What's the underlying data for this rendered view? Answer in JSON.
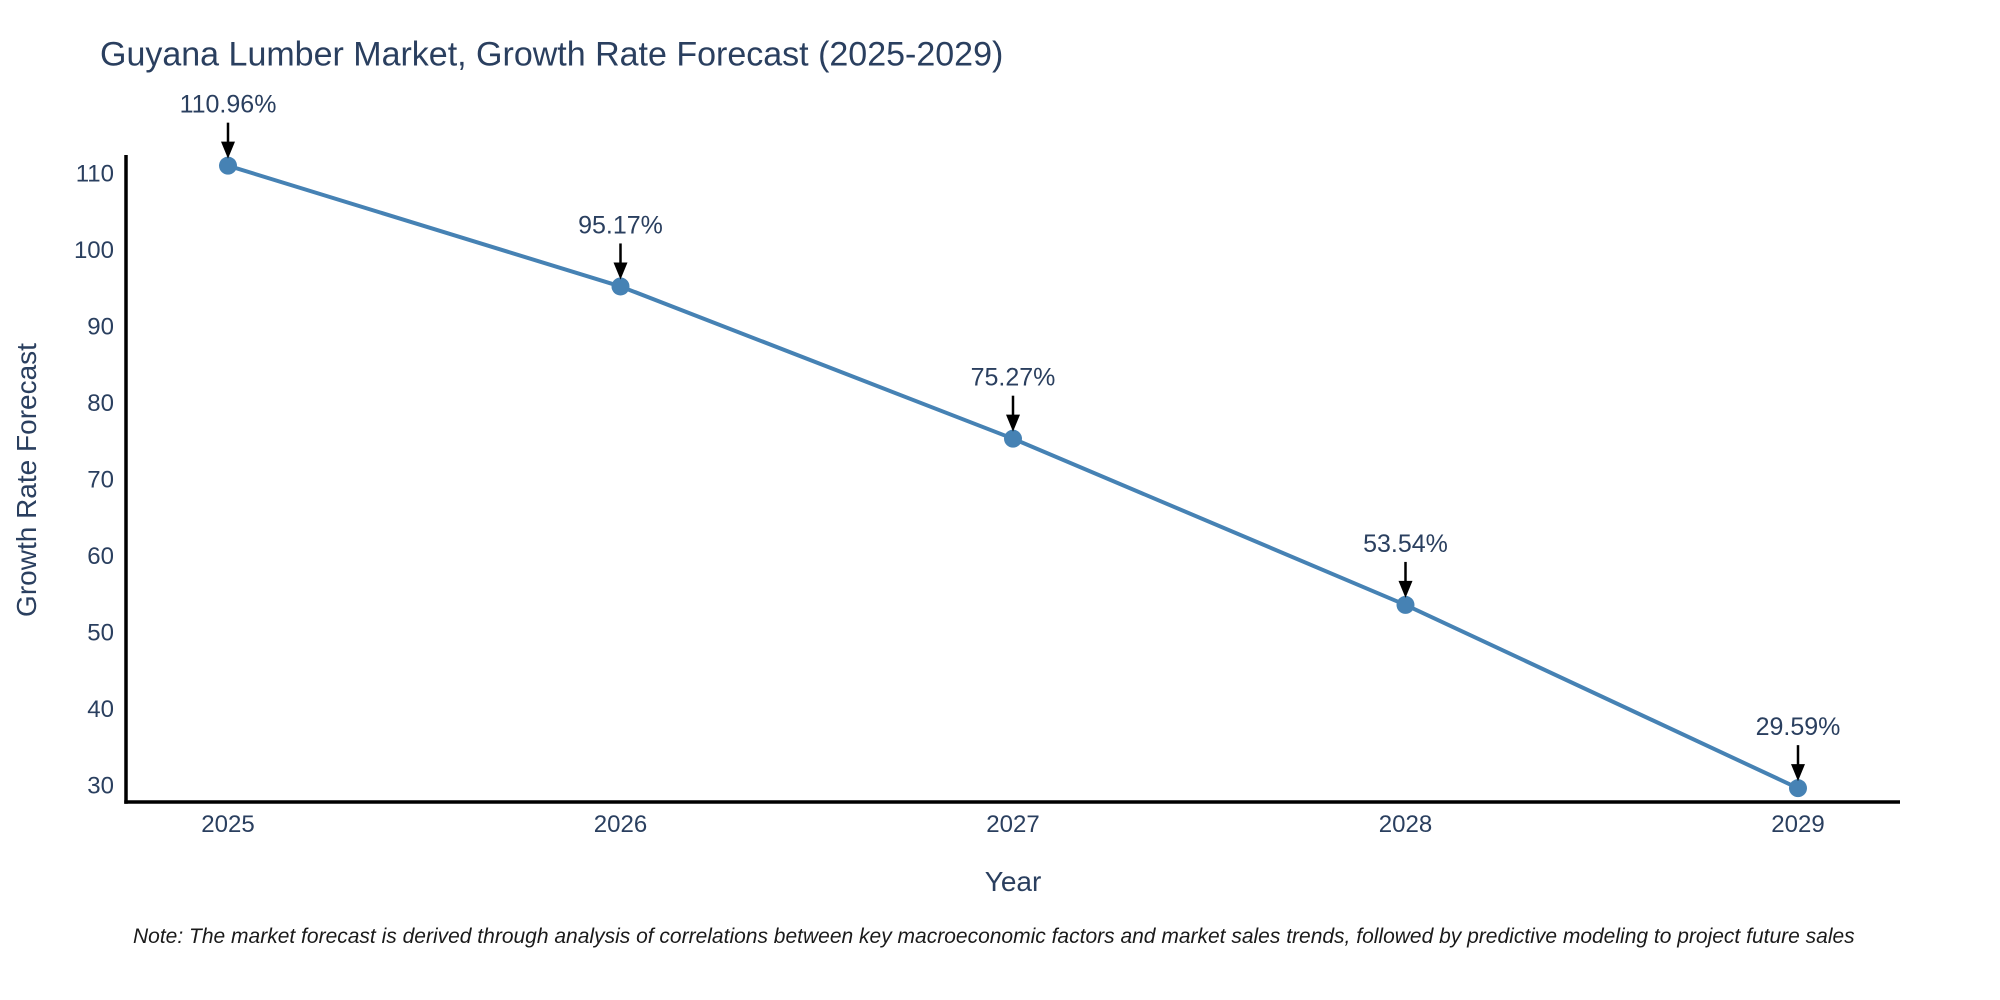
{
  "chart_data": {
    "type": "line",
    "title": "Guyana Lumber Market, Growth Rate Forecast (2025-2029)",
    "xlabel": "Year",
    "ylabel": "Growth Rate Forecast",
    "x": [
      2025,
      2026,
      2027,
      2028,
      2029
    ],
    "values": [
      110.96,
      95.17,
      75.27,
      53.54,
      29.59
    ],
    "point_labels": [
      "110.96%",
      "95.17%",
      "75.27%",
      "53.54%",
      "29.59%"
    ],
    "x_tick_labels": [
      "2025",
      "2026",
      "2027",
      "2028",
      "2029"
    ],
    "y_ticks": [
      110,
      100,
      90,
      80,
      70,
      60,
      50,
      40,
      30
    ],
    "ylim": [
      27.8,
      112.2
    ],
    "grid": false,
    "legend": false,
    "line_color": "#4682b4",
    "marker_color": "#4682b4",
    "axis_color": "#000000",
    "text_color": "#2a3f5f",
    "arrow_color": "#000000",
    "note_color": "#1a1a1a",
    "note": "Note: The market forecast is derived through analysis of correlations between key macroeconomic factors and market sales trends, followed by predictive modeling to project future sales"
  }
}
